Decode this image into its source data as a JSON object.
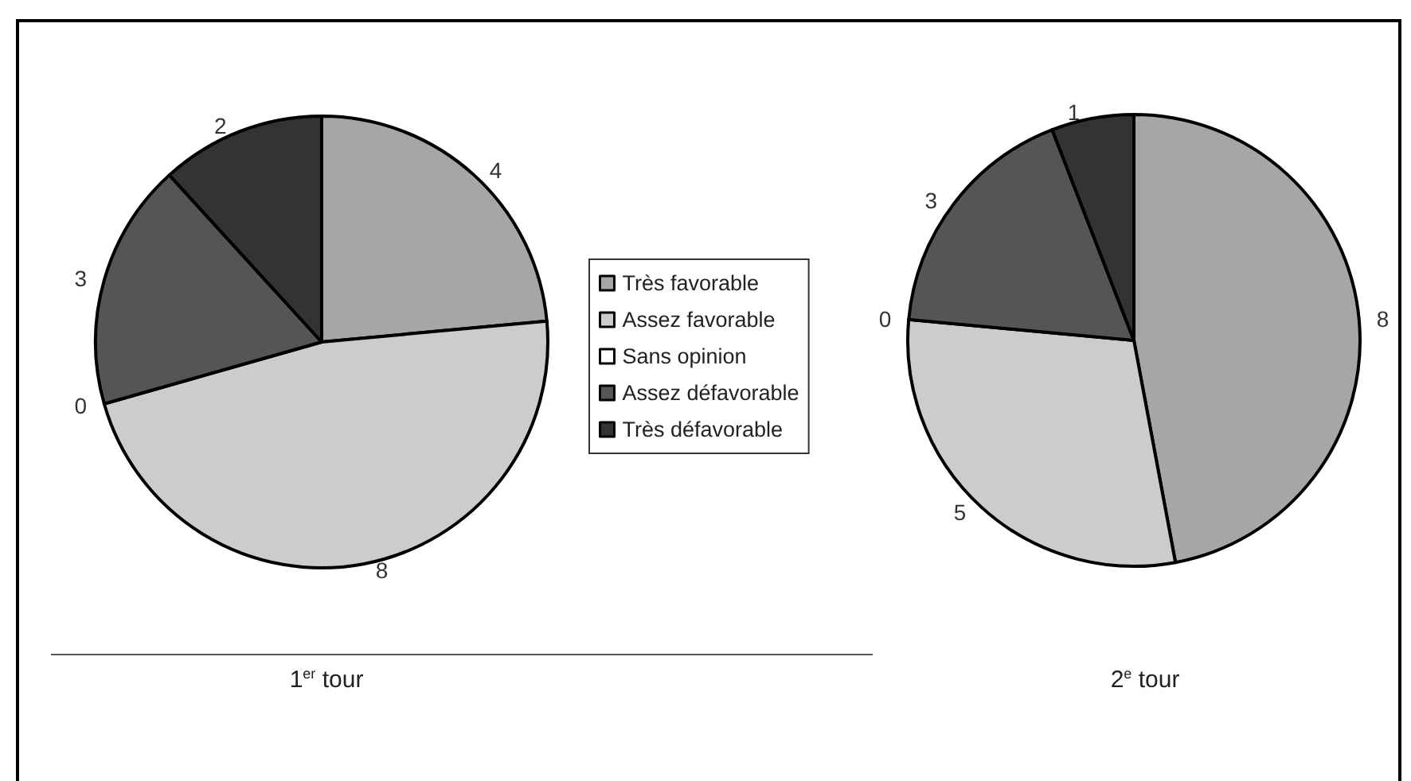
{
  "chart_data": {
    "type": "pie",
    "categories": [
      "Très favorable",
      "Assez favorable",
      "Sans opinion",
      "Assez défavorable",
      "Très défavorable"
    ],
    "colors": [
      "#a6a6a6",
      "#cccccc",
      "#ffffff",
      "#555555",
      "#333333"
    ],
    "legend": "right",
    "series": [
      {
        "name": "1$^{er}$ tour",
        "values": [
          4,
          8,
          0,
          3,
          2
        ],
        "value_labels": [
          "4",
          "8",
          "0",
          "3",
          "2"
        ]
      },
      {
        "name": "2$^{e}$ tour",
        "values": [
          8,
          5,
          0,
          3,
          1
        ],
        "value_labels": [
          "8",
          "5",
          "0",
          "3",
          "1"
        ]
      }
    ]
  }
}
